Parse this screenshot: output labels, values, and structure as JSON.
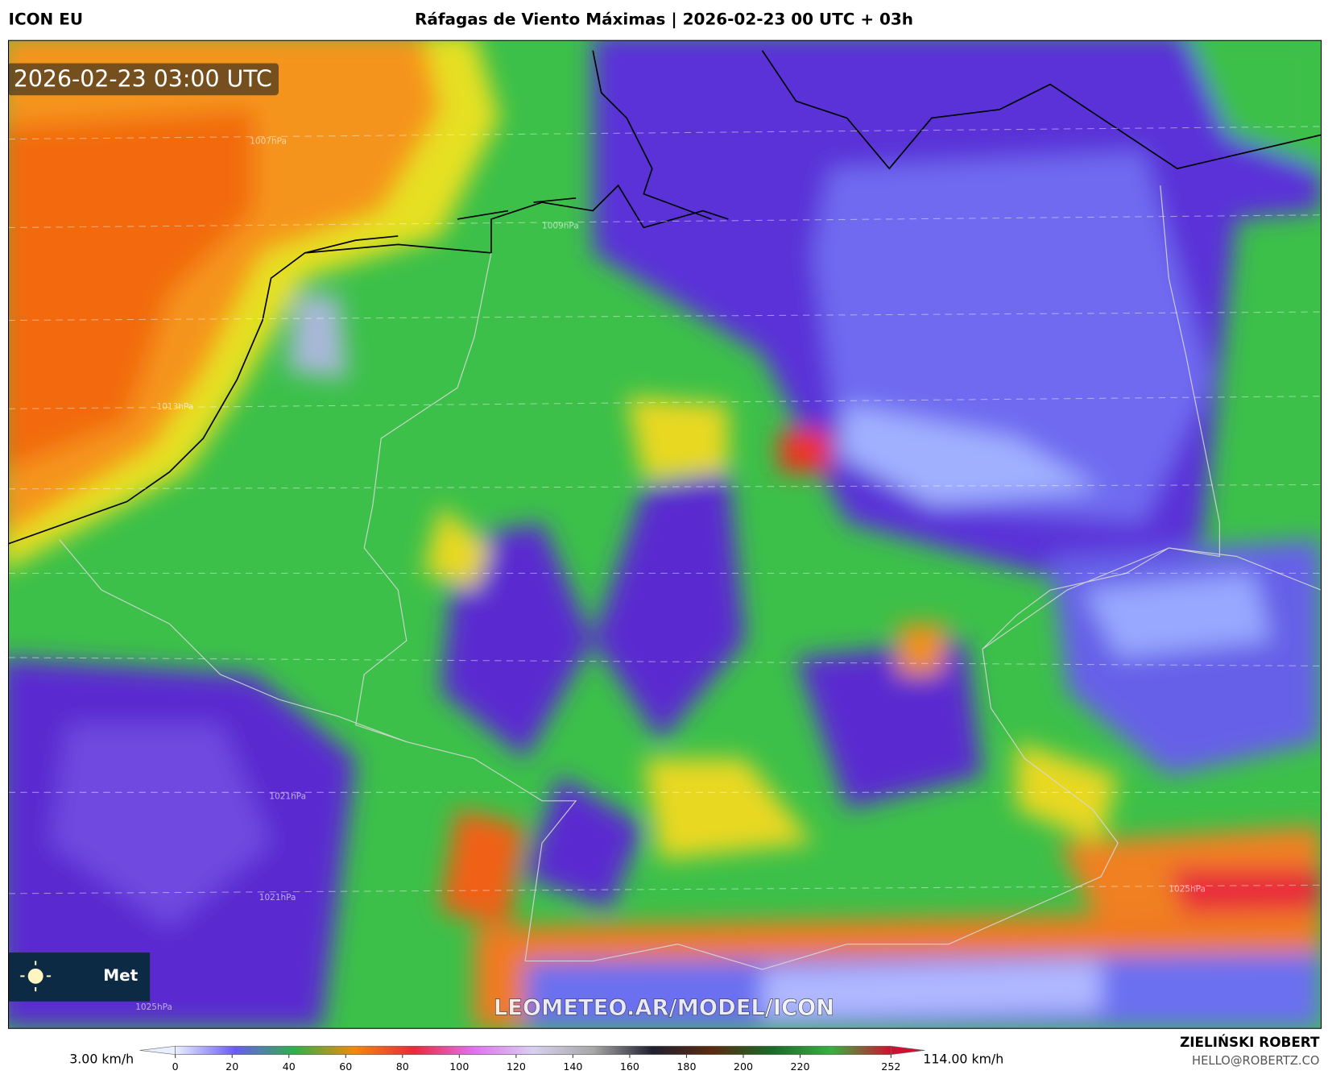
{
  "header": {
    "model": "ICON EU",
    "title": "Ráfagas de Viento Máximas | 2026-02-23 00 UTC + 03h"
  },
  "map": {
    "valid_time": "2026-02-23 03:00 UTC",
    "watermark": "LEOMETEO.AR/MODEL/ICON",
    "logo": "Met",
    "isobar_labels": [
      "1007hPa",
      "1009hPa",
      "1013hPa",
      "1021hPa",
      "1021hPa",
      "1025hPa",
      "1025hPa"
    ]
  },
  "colorbar": {
    "min_label": "3.00 km/h",
    "max_label": "114.00 km/h",
    "lim": [
      0,
      252
    ],
    "ticks": [
      0,
      20,
      40,
      60,
      80,
      100,
      120,
      140,
      160,
      180,
      200,
      220,
      252
    ],
    "colors": [
      "#e8f0ff",
      "#6a5cf0",
      "#2fb04a",
      "#f08a10",
      "#e82a3a",
      "#e070f0",
      "#d8d0f0",
      "#a8a8a8",
      "#202030",
      "#5a2a10",
      "#1a6a2a",
      "#38b040",
      "#d01030"
    ]
  },
  "footer": {
    "author": "ZIELIŃSKI ROBERT",
    "contact": "HELLO@ROBERTZ.CO"
  }
}
